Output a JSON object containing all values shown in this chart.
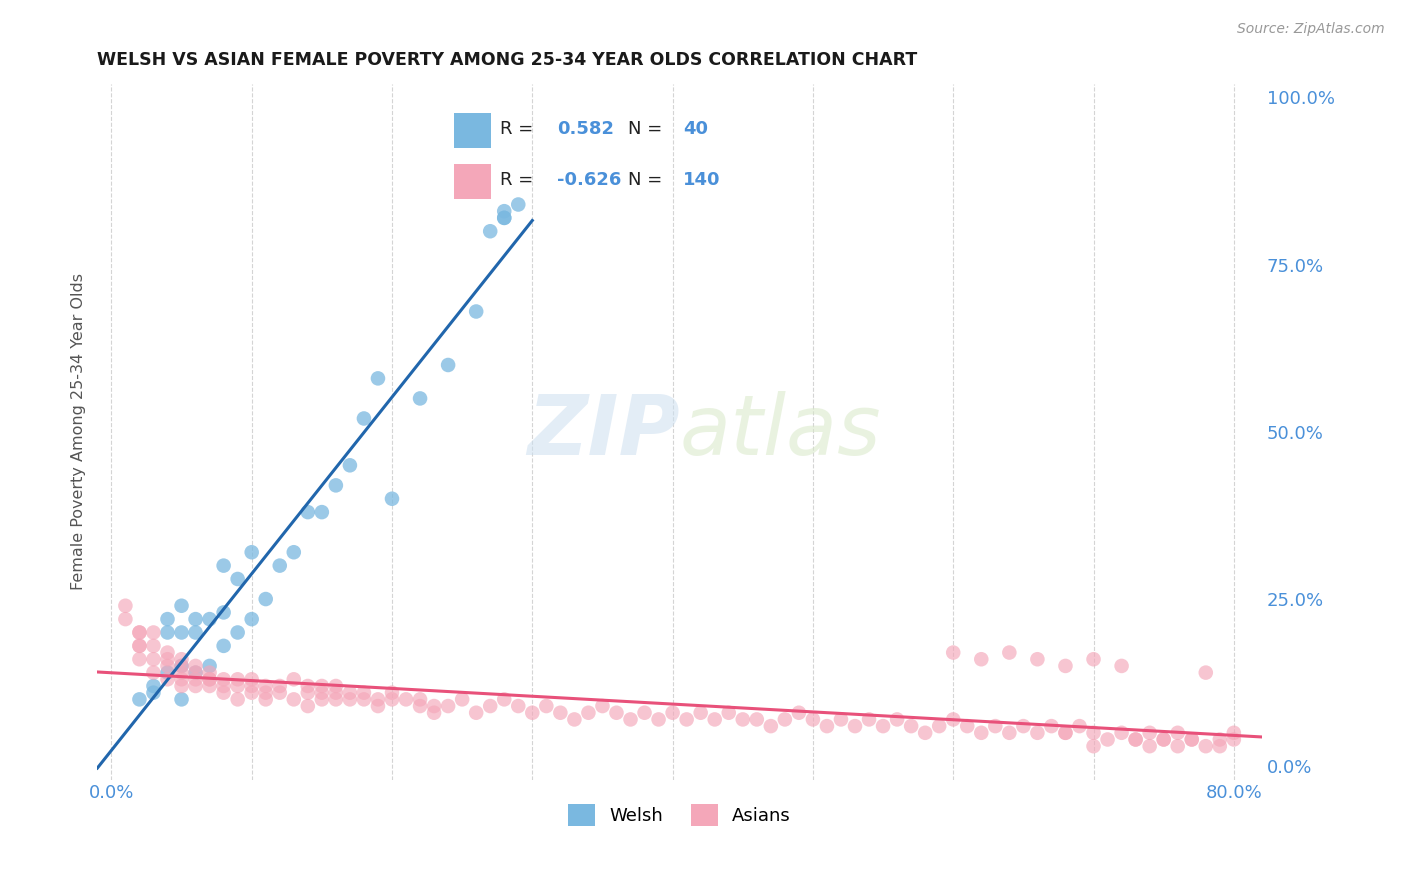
{
  "title": "WELSH VS ASIAN FEMALE POVERTY AMONG 25-34 YEAR OLDS CORRELATION CHART",
  "source": "Source: ZipAtlas.com",
  "ylabel": "Female Poverty Among 25-34 Year Olds",
  "xlim": [
    0.0,
    0.8
  ],
  "ylim": [
    0.0,
    1.0
  ],
  "xticks": [
    0.0,
    0.1,
    0.2,
    0.3,
    0.4,
    0.5,
    0.6,
    0.7,
    0.8
  ],
  "xticklabels": [
    "0.0%",
    "",
    "",
    "",
    "",
    "",
    "",
    "",
    "80.0%"
  ],
  "yticks_right": [
    0.0,
    0.25,
    0.5,
    0.75,
    1.0
  ],
  "yticklabels_right": [
    "0.0%",
    "25.0%",
    "50.0%",
    "75.0%",
    "100.0%"
  ],
  "welsh_R": 0.582,
  "welsh_N": 40,
  "asian_R": -0.626,
  "asian_N": 140,
  "welsh_color": "#7ab8e0",
  "asian_color": "#f4a7b9",
  "welsh_line_color": "#2166ac",
  "asian_line_color": "#e8517a",
  "watermark_zip": "ZIP",
  "watermark_atlas": "atlas",
  "background_color": "#ffffff",
  "grid_color": "#d0d0d0",
  "title_color": "#1a1a1a",
  "tick_color": "#4a90d9",
  "welsh_scatter_x": [
    0.02,
    0.03,
    0.03,
    0.04,
    0.04,
    0.04,
    0.05,
    0.05,
    0.05,
    0.05,
    0.06,
    0.06,
    0.06,
    0.07,
    0.07,
    0.08,
    0.08,
    0.08,
    0.09,
    0.09,
    0.1,
    0.1,
    0.11,
    0.12,
    0.13,
    0.14,
    0.15,
    0.16,
    0.17,
    0.18,
    0.19,
    0.2,
    0.22,
    0.24,
    0.26,
    0.27,
    0.28,
    0.28,
    0.28,
    0.29
  ],
  "welsh_scatter_y": [
    0.1,
    0.12,
    0.11,
    0.14,
    0.2,
    0.22,
    0.1,
    0.15,
    0.2,
    0.24,
    0.14,
    0.2,
    0.22,
    0.15,
    0.22,
    0.18,
    0.23,
    0.3,
    0.2,
    0.28,
    0.22,
    0.32,
    0.25,
    0.3,
    0.32,
    0.38,
    0.38,
    0.42,
    0.45,
    0.52,
    0.58,
    0.4,
    0.55,
    0.6,
    0.68,
    0.8,
    0.82,
    0.83,
    0.82,
    0.84
  ],
  "asian_scatter_x": [
    0.01,
    0.01,
    0.02,
    0.02,
    0.02,
    0.02,
    0.02,
    0.03,
    0.03,
    0.03,
    0.03,
    0.04,
    0.04,
    0.04,
    0.04,
    0.05,
    0.05,
    0.05,
    0.05,
    0.05,
    0.06,
    0.06,
    0.06,
    0.06,
    0.07,
    0.07,
    0.07,
    0.07,
    0.08,
    0.08,
    0.08,
    0.09,
    0.09,
    0.09,
    0.1,
    0.1,
    0.1,
    0.11,
    0.11,
    0.11,
    0.12,
    0.12,
    0.13,
    0.13,
    0.14,
    0.14,
    0.14,
    0.15,
    0.15,
    0.15,
    0.16,
    0.16,
    0.16,
    0.17,
    0.17,
    0.18,
    0.18,
    0.19,
    0.19,
    0.2,
    0.2,
    0.21,
    0.22,
    0.22,
    0.23,
    0.23,
    0.24,
    0.25,
    0.26,
    0.27,
    0.28,
    0.29,
    0.3,
    0.31,
    0.32,
    0.33,
    0.34,
    0.35,
    0.36,
    0.37,
    0.38,
    0.39,
    0.4,
    0.41,
    0.42,
    0.43,
    0.44,
    0.45,
    0.46,
    0.47,
    0.48,
    0.49,
    0.5,
    0.51,
    0.52,
    0.53,
    0.54,
    0.55,
    0.56,
    0.57,
    0.58,
    0.59,
    0.6,
    0.61,
    0.62,
    0.63,
    0.64,
    0.65,
    0.66,
    0.67,
    0.68,
    0.69,
    0.7,
    0.71,
    0.72,
    0.73,
    0.74,
    0.75,
    0.76,
    0.77,
    0.6,
    0.62,
    0.64,
    0.66,
    0.68,
    0.7,
    0.72,
    0.74,
    0.76,
    0.78,
    0.79,
    0.8,
    0.8,
    0.79,
    0.78,
    0.77,
    0.75,
    0.73,
    0.7,
    0.68
  ],
  "asian_scatter_y": [
    0.22,
    0.24,
    0.18,
    0.2,
    0.16,
    0.18,
    0.2,
    0.16,
    0.14,
    0.18,
    0.2,
    0.15,
    0.17,
    0.13,
    0.16,
    0.14,
    0.16,
    0.13,
    0.15,
    0.12,
    0.14,
    0.12,
    0.15,
    0.13,
    0.13,
    0.14,
    0.13,
    0.12,
    0.13,
    0.12,
    0.11,
    0.13,
    0.12,
    0.1,
    0.12,
    0.11,
    0.13,
    0.12,
    0.1,
    0.11,
    0.12,
    0.11,
    0.13,
    0.1,
    0.12,
    0.11,
    0.09,
    0.11,
    0.1,
    0.12,
    0.11,
    0.1,
    0.12,
    0.1,
    0.11,
    0.1,
    0.11,
    0.09,
    0.1,
    0.11,
    0.1,
    0.1,
    0.09,
    0.1,
    0.09,
    0.08,
    0.09,
    0.1,
    0.08,
    0.09,
    0.1,
    0.09,
    0.08,
    0.09,
    0.08,
    0.07,
    0.08,
    0.09,
    0.08,
    0.07,
    0.08,
    0.07,
    0.08,
    0.07,
    0.08,
    0.07,
    0.08,
    0.07,
    0.07,
    0.06,
    0.07,
    0.08,
    0.07,
    0.06,
    0.07,
    0.06,
    0.07,
    0.06,
    0.07,
    0.06,
    0.05,
    0.06,
    0.07,
    0.06,
    0.05,
    0.06,
    0.05,
    0.06,
    0.05,
    0.06,
    0.05,
    0.06,
    0.05,
    0.04,
    0.05,
    0.04,
    0.05,
    0.04,
    0.05,
    0.04,
    0.17,
    0.16,
    0.17,
    0.16,
    0.15,
    0.16,
    0.15,
    0.03,
    0.03,
    0.14,
    0.04,
    0.04,
    0.05,
    0.03,
    0.03,
    0.04,
    0.04,
    0.04,
    0.03,
    0.05
  ]
}
